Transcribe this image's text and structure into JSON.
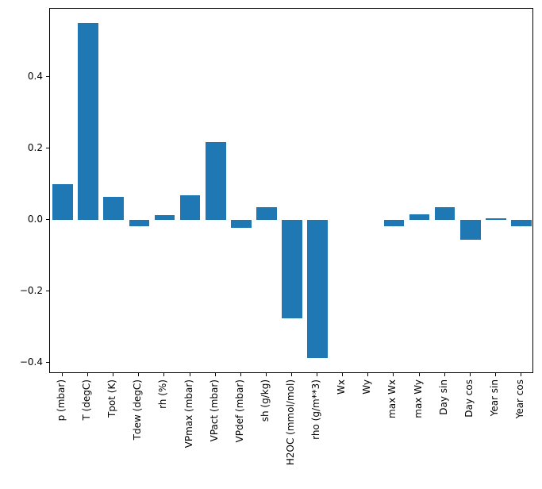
{
  "chart_data": {
    "type": "bar",
    "title": "",
    "xlabel": "",
    "ylabel": "",
    "categories": [
      "p (mbar)",
      "T (degC)",
      "Tpot (K)",
      "Tdew (degC)",
      "rh (%)",
      "VPmax (mbar)",
      "VPact (mbar)",
      "VPdef (mbar)",
      "sh (g/kg)",
      "H2OC (mmol/mol)",
      "rho (g/m**3)",
      "Wx",
      "Wy",
      "max Wx",
      "max Wy",
      "Day sin",
      "Day cos",
      "Year sin",
      "Year cos"
    ],
    "values": [
      0.1,
      0.55,
      0.065,
      -0.018,
      0.013,
      0.068,
      0.218,
      -0.022,
      0.035,
      -0.275,
      -0.385,
      0.0,
      0.0,
      -0.018,
      0.015,
      0.035,
      -0.055,
      0.004,
      -0.018
    ],
    "ylim": [
      -0.43,
      0.59
    ],
    "yticks": [
      -0.4,
      -0.2,
      0.0,
      0.2,
      0.4
    ],
    "ytick_labels": [
      "−0.4",
      "−0.2",
      "0.0",
      "0.2",
      "0.4"
    ],
    "x_tick_rotation": 90,
    "grid": false,
    "legend": "none",
    "bar_color": "#1f77b4",
    "background_color": "#ffffff",
    "axis_color": "#000000"
  }
}
